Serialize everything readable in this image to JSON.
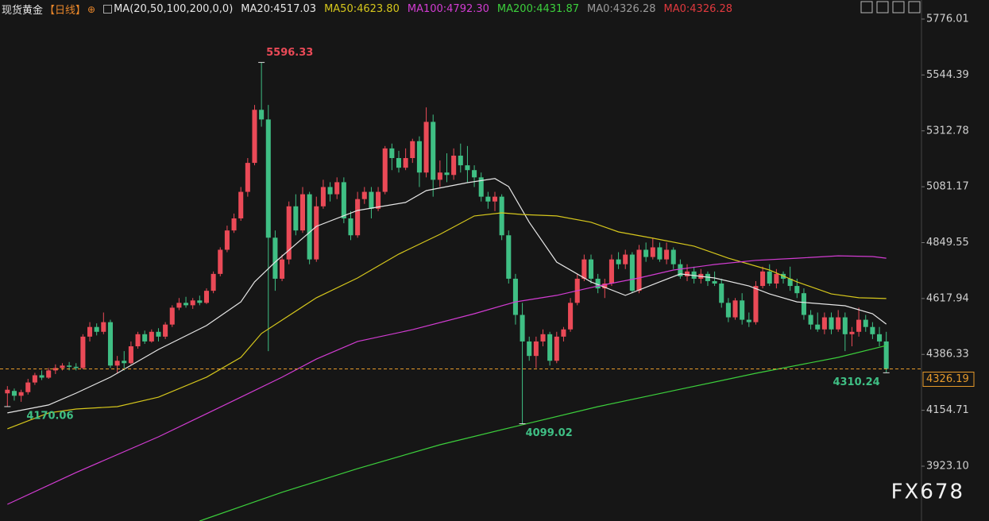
{
  "chart_data": {
    "type": "candlestick",
    "title": "现货黄金",
    "period": "【日线】",
    "indicator": "MA(20,50,100,200,0,0)",
    "legend": [
      {
        "text": "MA20:4517.03",
        "color": "#e6e6e6"
      },
      {
        "text": "MA50:4623.80",
        "color": "#d6c71c"
      },
      {
        "text": "MA100:4792.30",
        "color": "#d23cd2"
      },
      {
        "text": "MA200:4431.87",
        "color": "#3ccf3c"
      },
      {
        "text": "MA0:4326.28",
        "color": "#9a9a9a"
      },
      {
        "text": "MA0:4326.28",
        "color": "#e0393e"
      }
    ],
    "up_color": "#ea4a57",
    "down_color": "#3fbf84",
    "last_price_color": "#e69a2b",
    "ylim": [
      3696,
      5855
    ],
    "yticks": [
      {
        "value": 5776.01,
        "label": "5776.01"
      },
      5544.39,
      5312.78,
      5081.17,
      4849.55,
      4617.94,
      4386.33,
      4154.71,
      {
        "value": 3923.1,
        "label": "3923.10"
      }
    ],
    "candles": [
      [
        4225,
        4255,
        4170.06,
        4240
      ],
      [
        4235,
        4245,
        4195,
        4215
      ],
      [
        4215,
        4240,
        4190,
        4230
      ],
      [
        4230,
        4285,
        4220,
        4270
      ],
      [
        4270,
        4310,
        4260,
        4300
      ],
      [
        4300,
        4320,
        4280,
        4290
      ],
      [
        4290,
        4330,
        4285,
        4320
      ],
      [
        4320,
        4345,
        4305,
        4330
      ],
      [
        4330,
        4350,
        4320,
        4340
      ],
      [
        4340,
        4355,
        4320,
        4335
      ],
      [
        4335,
        4350,
        4320,
        4330
      ],
      [
        4330,
        4470,
        4325,
        4460
      ],
      [
        4460,
        4520,
        4440,
        4500
      ],
      [
        4500,
        4515,
        4465,
        4480
      ],
      [
        4480,
        4560,
        4470,
        4520
      ],
      [
        4520,
        4530,
        4330,
        4340
      ],
      [
        4340,
        4380,
        4310,
        4360
      ],
      [
        4360,
        4400,
        4320,
        4350
      ],
      [
        4350,
        4440,
        4345,
        4420
      ],
      [
        4420,
        4480,
        4410,
        4470
      ],
      [
        4470,
        4485,
        4430,
        4440
      ],
      [
        4440,
        4490,
        4435,
        4480
      ],
      [
        4480,
        4495,
        4440,
        4460
      ],
      [
        4460,
        4520,
        4450,
        4510
      ],
      [
        4510,
        4590,
        4500,
        4580
      ],
      [
        4580,
        4620,
        4570,
        4600
      ],
      [
        4600,
        4625,
        4580,
        4590
      ],
      [
        4590,
        4620,
        4575,
        4610
      ],
      [
        4610,
        4630,
        4590,
        4600
      ],
      [
        4600,
        4660,
        4595,
        4650
      ],
      [
        4650,
        4730,
        4640,
        4720
      ],
      [
        4720,
        4830,
        4710,
        4820
      ],
      [
        4820,
        4920,
        4810,
        4900
      ],
      [
        4900,
        4970,
        4890,
        4950
      ],
      [
        4950,
        5080,
        4940,
        5060
      ],
      [
        5060,
        5200,
        5040,
        5180
      ],
      [
        5180,
        5420,
        5170,
        5400
      ],
      [
        5400,
        5596.33,
        5330,
        5360
      ],
      [
        5360,
        5420,
        4400,
        4870
      ],
      [
        4870,
        4900,
        4650,
        4700
      ],
      [
        4700,
        4800,
        4690,
        4780
      ],
      [
        4780,
        5020,
        4760,
        5000
      ],
      [
        5000,
        5050,
        4880,
        4900
      ],
      [
        4900,
        5080,
        4890,
        5050
      ],
      [
        5050,
        5060,
        4760,
        4780
      ],
      [
        4780,
        5040,
        4770,
        5000
      ],
      [
        5000,
        5110,
        4990,
        5080
      ],
      [
        5080,
        5100,
        5020,
        5050
      ],
      [
        5050,
        5120,
        5030,
        5100
      ],
      [
        5100,
        5120,
        4930,
        4950
      ],
      [
        4950,
        4980,
        4860,
        4880
      ],
      [
        4880,
        5060,
        4870,
        5030
      ],
      [
        5030,
        5080,
        5010,
        5060
      ],
      [
        5060,
        5080,
        4950,
        4990
      ],
      [
        4990,
        5080,
        4980,
        5060
      ],
      [
        5060,
        5250,
        5050,
        5240
      ],
      [
        5240,
        5260,
        5150,
        5200
      ],
      [
        5200,
        5230,
        5140,
        5160
      ],
      [
        5160,
        5240,
        5150,
        5200
      ],
      [
        5200,
        5280,
        5180,
        5270
      ],
      [
        5270,
        5290,
        5080,
        5140
      ],
      [
        5140,
        5410,
        5120,
        5350
      ],
      [
        5350,
        5380,
        5040,
        5110
      ],
      [
        5110,
        5190,
        5080,
        5140
      ],
      [
        5140,
        5220,
        5100,
        5130
      ],
      [
        5130,
        5240,
        5110,
        5210
      ],
      [
        5210,
        5260,
        5140,
        5170
      ],
      [
        5170,
        5250,
        5100,
        5150
      ],
      [
        5150,
        5170,
        5080,
        5120
      ],
      [
        5120,
        5140,
        5020,
        5040
      ],
      [
        5040,
        5060,
        4990,
        5020
      ],
      [
        5020,
        5060,
        4980,
        5040
      ],
      [
        5040,
        5050,
        4860,
        4880
      ],
      [
        4880,
        4900,
        4680,
        4700
      ],
      [
        4700,
        4720,
        4510,
        4550
      ],
      [
        4550,
        4600,
        4099.02,
        4440
      ],
      [
        4440,
        4460,
        4360,
        4380
      ],
      [
        4380,
        4460,
        4330,
        4440
      ],
      [
        4440,
        4490,
        4420,
        4470
      ],
      [
        4470,
        4480,
        4340,
        4360
      ],
      [
        4360,
        4480,
        4350,
        4460
      ],
      [
        4460,
        4500,
        4440,
        4490
      ],
      [
        4490,
        4620,
        4480,
        4600
      ],
      [
        4600,
        4720,
        4590,
        4700
      ],
      [
        4700,
        4800,
        4690,
        4780
      ],
      [
        4780,
        4800,
        4680,
        4700
      ],
      [
        4700,
        4720,
        4640,
        4660
      ],
      [
        4660,
        4700,
        4620,
        4680
      ],
      [
        4680,
        4800,
        4670,
        4780
      ],
      [
        4780,
        4810,
        4740,
        4760
      ],
      [
        4760,
        4820,
        4740,
        4800
      ],
      [
        4800,
        4810,
        4640,
        4650
      ],
      [
        4650,
        4840,
        4640,
        4820
      ],
      [
        4820,
        4850,
        4770,
        4790
      ],
      [
        4790,
        4870,
        4780,
        4830
      ],
      [
        4830,
        4850,
        4770,
        4780
      ],
      [
        4780,
        4850,
        4760,
        4820
      ],
      [
        4820,
        4830,
        4740,
        4760
      ],
      [
        4760,
        4780,
        4700,
        4710
      ],
      [
        4710,
        4760,
        4690,
        4730
      ],
      [
        4730,
        4750,
        4680,
        4700
      ],
      [
        4700,
        4740,
        4680,
        4720
      ],
      [
        4720,
        4730,
        4670,
        4690
      ],
      [
        4690,
        4730,
        4670,
        4680
      ],
      [
        4680,
        4700,
        4580,
        4600
      ],
      [
        4600,
        4620,
        4520,
        4540
      ],
      [
        4540,
        4620,
        4530,
        4610
      ],
      [
        4610,
        4640,
        4510,
        4530
      ],
      [
        4530,
        4560,
        4500,
        4520
      ],
      [
        4520,
        4690,
        4510,
        4670
      ],
      [
        4670,
        4750,
        4660,
        4730
      ],
      [
        4730,
        4760,
        4670,
        4680
      ],
      [
        4680,
        4740,
        4660,
        4720
      ],
      [
        4720,
        4730,
        4680,
        4700
      ],
      [
        4700,
        4750,
        4650,
        4670
      ],
      [
        4670,
        4700,
        4620,
        4640
      ],
      [
        4640,
        4660,
        4530,
        4550
      ],
      [
        4550,
        4570,
        4490,
        4510
      ],
      [
        4510,
        4560,
        4480,
        4490
      ],
      [
        4490,
        4560,
        4470,
        4540
      ],
      [
        4540,
        4560,
        4470,
        4490
      ],
      [
        4490,
        4570,
        4480,
        4540
      ],
      [
        4540,
        4560,
        4400,
        4470
      ],
      [
        4470,
        4500,
        4420,
        4480
      ],
      [
        4480,
        4580,
        4460,
        4530
      ],
      [
        4530,
        4550,
        4480,
        4500
      ],
      [
        4500,
        4520,
        4450,
        4470
      ],
      [
        4470,
        4500,
        4420,
        4440
      ],
      [
        4440,
        4480,
        4310.24,
        4326.19
      ]
    ],
    "series": [
      {
        "color": "#e6e6e6",
        "x": [
          0,
          6,
          10,
          15,
          22,
          29,
          34,
          36,
          39,
          45,
          51,
          58,
          61,
          67,
          71,
          73,
          76,
          80,
          85,
          90,
          95,
          98,
          103,
          108,
          111,
          115,
          122,
          126,
          128
        ],
        "values": [
          4144,
          4177,
          4226,
          4292,
          4407,
          4506,
          4604,
          4687,
          4769,
          4917,
          4983,
          5016,
          5065,
          5098,
          5115,
          5082,
          4934,
          4769,
          4687,
          4631,
          4687,
          4720,
          4703,
          4670,
          4637,
          4604,
          4588,
          4555,
          4512
        ]
      },
      {
        "color": "#d6c71c",
        "x": [
          0,
          6,
          10,
          16,
          22,
          29,
          34,
          37,
          45,
          51,
          57,
          63,
          68,
          72,
          75,
          80,
          85,
          89,
          94,
          100,
          105,
          111,
          115,
          120,
          124,
          128
        ],
        "values": [
          4078,
          4144,
          4160,
          4170,
          4209,
          4292,
          4374,
          4473,
          4621,
          4703,
          4802,
          4884,
          4960,
          4973,
          4966,
          4960,
          4934,
          4894,
          4868,
          4835,
          4785,
          4736,
          4687,
          4637,
          4621,
          4618
        ]
      },
      {
        "color": "#d23cd2",
        "x": [
          0,
          10,
          22,
          34,
          40,
          45,
          51,
          59,
          68,
          74,
          80,
          86,
          92,
          97,
          103,
          109,
          115,
          121,
          126,
          128
        ],
        "values": [
          3765,
          3897,
          4045,
          4209,
          4292,
          4367,
          4440,
          4489,
          4555,
          4604,
          4631,
          4670,
          4703,
          4736,
          4759,
          4776,
          4785,
          4795,
          4792,
          4785
        ]
      },
      {
        "color": "#3ccf3c",
        "x": [
          28,
          40,
          51,
          63,
          74,
          86,
          98,
          109,
          121,
          128
        ],
        "values": [
          3696,
          3815,
          3913,
          4012,
          4088,
          4170,
          4242,
          4308,
          4374,
          4423
        ]
      }
    ],
    "watermark": "FX678"
  }
}
